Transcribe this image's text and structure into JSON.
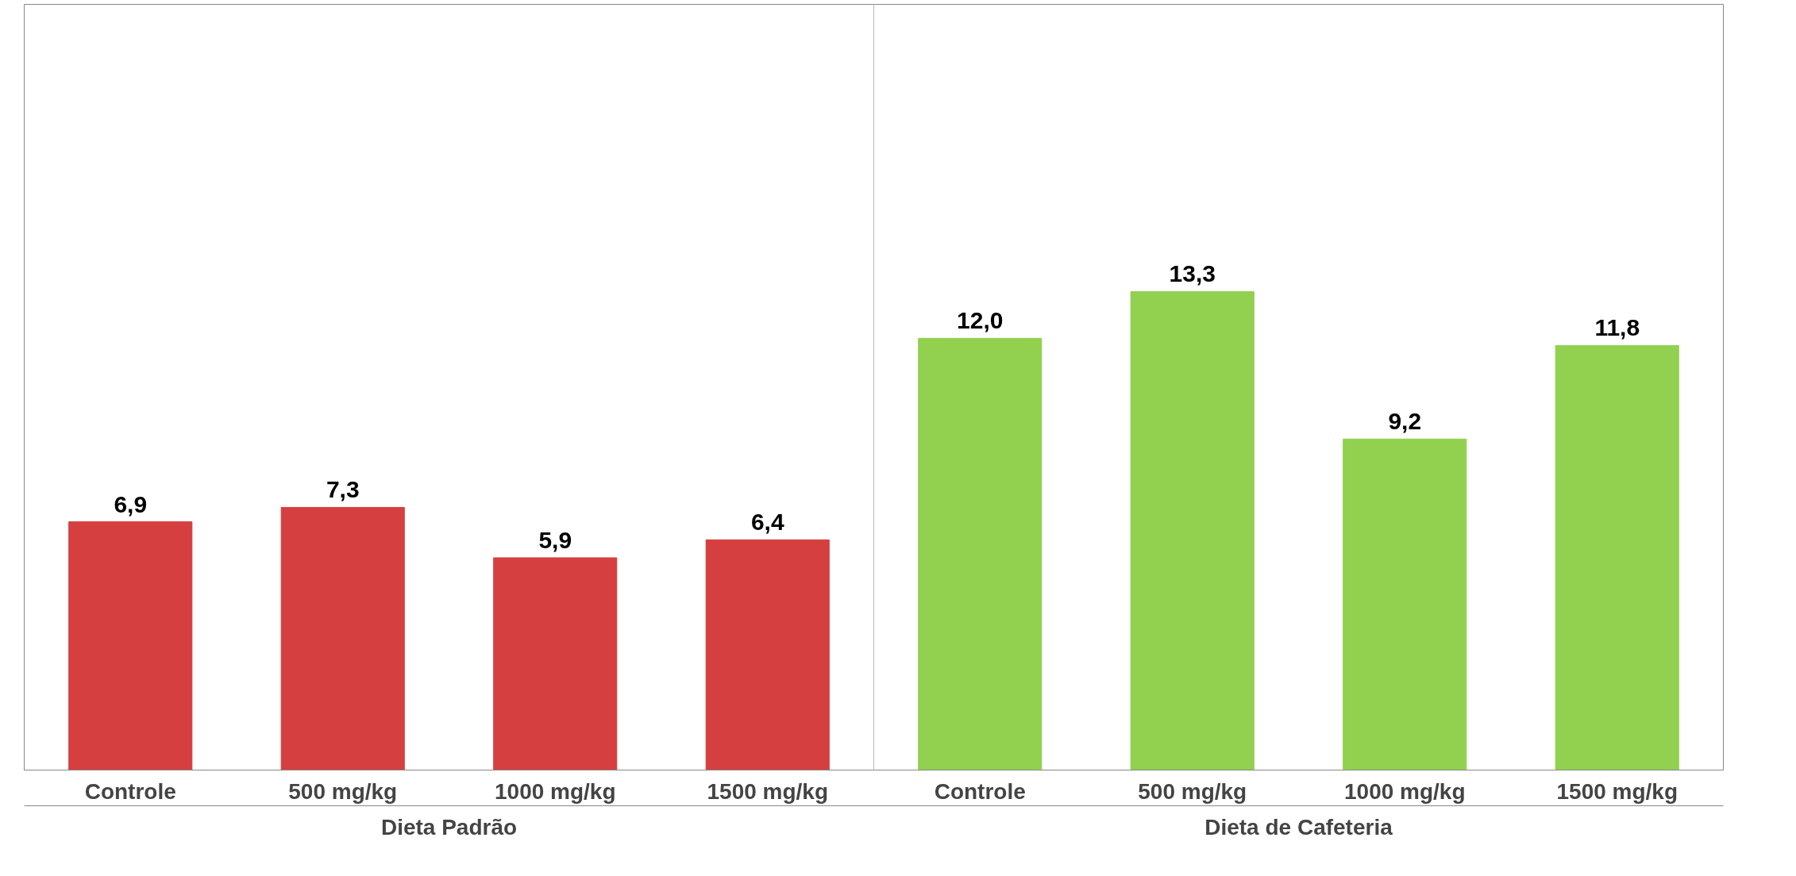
{
  "chart_data": {
    "type": "bar",
    "categories": [
      "Controle",
      "500 mg/kg",
      "1000 mg/kg",
      "1500 mg/kg",
      "Controle",
      "500 mg/kg",
      "1000 mg/kg",
      "1500 mg/kg"
    ],
    "values": [
      6.9,
      7.3,
      5.9,
      6.4,
      12.0,
      13.3,
      9.2,
      11.8
    ],
    "colors": [
      "#d63f3f",
      "#d63f3f",
      "#d63f3f",
      "#d63f3f",
      "#92d050",
      "#92d050",
      "#92d050",
      "#92d050"
    ],
    "value_labels": [
      "6,9",
      "7,3",
      "5,9",
      "6,4",
      "12,0",
      "13,3",
      "9,2",
      "11,8"
    ],
    "annotations": [
      "Dieta Padrão",
      "Dieta de Cafeteria"
    ]
  }
}
